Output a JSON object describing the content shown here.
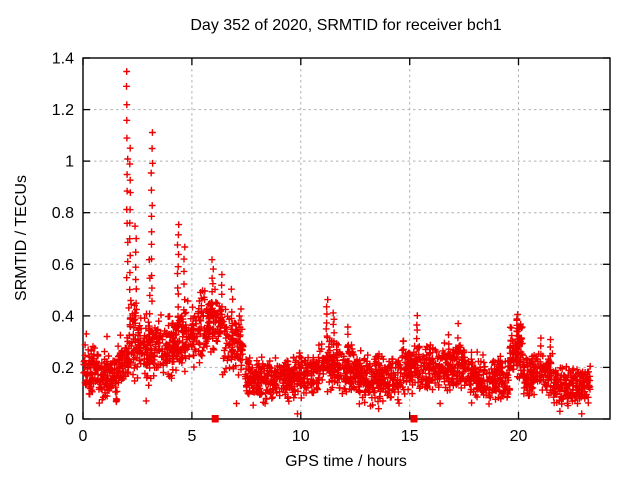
{
  "chart_data": {
    "type": "scatter",
    "title": "Day 352 of 2020, SRMTID for receiver bch1",
    "xlabel": "GPS time / hours",
    "ylabel": "SRMTID / TECUs",
    "xlim": [
      0,
      24.2
    ],
    "ylim": [
      0,
      1.4
    ],
    "xticks": {
      "values": [
        0,
        5,
        10,
        15,
        20
      ],
      "labels": [
        "0",
        "5",
        "10",
        "15",
        "20"
      ]
    },
    "yticks": {
      "values": [
        0,
        0.2,
        0.4,
        0.6,
        0.8,
        1.0,
        1.2,
        1.4
      ],
      "labels": [
        "0",
        "0.2",
        "0.4",
        "0.6",
        "0.8",
        "1",
        "1.2",
        "1.4"
      ]
    },
    "grid": true,
    "grid_color": "#b0b0b0",
    "axis_color": "#000000",
    "legend": "none",
    "series": [
      {
        "name": "srmtid-points",
        "marker": "plus",
        "color": "#ee0000",
        "seed": 1352,
        "envelope_segments": [
          {
            "h0": 0.03,
            "h1": 0.7,
            "center": 0.19,
            "spread": 0.13,
            "count": 80
          },
          {
            "h0": 0.7,
            "h1": 1.6,
            "center": 0.16,
            "spread": 0.12,
            "count": 100
          },
          {
            "h0": 1.6,
            "h1": 2.1,
            "center": 0.22,
            "spread": 0.16,
            "count": 60
          },
          {
            "h0": 2.1,
            "h1": 2.6,
            "center": 0.3,
            "spread": 0.19,
            "count": 60
          },
          {
            "h0": 2.6,
            "h1": 3.3,
            "center": 0.26,
            "spread": 0.17,
            "count": 80
          },
          {
            "h0": 3.3,
            "h1": 4.3,
            "center": 0.28,
            "spread": 0.16,
            "count": 110
          },
          {
            "h0": 4.3,
            "h1": 5.3,
            "center": 0.31,
            "spread": 0.17,
            "count": 110
          },
          {
            "h0": 5.3,
            "h1": 6.4,
            "center": 0.36,
            "spread": 0.17,
            "count": 120
          },
          {
            "h0": 6.4,
            "h1": 7.35,
            "center": 0.29,
            "spread": 0.17,
            "count": 100
          },
          {
            "h0": 7.45,
            "h1": 9.6,
            "center": 0.15,
            "spread": 0.11,
            "count": 240
          },
          {
            "h0": 9.6,
            "h1": 10.8,
            "center": 0.17,
            "spread": 0.12,
            "count": 130
          },
          {
            "h0": 10.8,
            "h1": 11.7,
            "center": 0.21,
            "spread": 0.13,
            "count": 100
          },
          {
            "h0": 11.7,
            "h1": 12.6,
            "center": 0.19,
            "spread": 0.13,
            "count": 100
          },
          {
            "h0": 12.6,
            "h1": 14.6,
            "center": 0.16,
            "spread": 0.13,
            "count": 220
          },
          {
            "h0": 14.6,
            "h1": 16.0,
            "center": 0.2,
            "spread": 0.13,
            "count": 150
          },
          {
            "h0": 16.0,
            "h1": 17.6,
            "center": 0.2,
            "spread": 0.13,
            "count": 170
          },
          {
            "h0": 17.6,
            "h1": 19.6,
            "center": 0.16,
            "spread": 0.12,
            "count": 210
          },
          {
            "h0": 19.6,
            "h1": 20.2,
            "center": 0.26,
            "spread": 0.14,
            "count": 70
          },
          {
            "h0": 20.2,
            "h1": 21.6,
            "center": 0.17,
            "spread": 0.12,
            "count": 150
          },
          {
            "h0": 21.6,
            "h1": 23.3,
            "center": 0.13,
            "spread": 0.1,
            "count": 180
          }
        ],
        "outlier_streaks": [
          {
            "x": 2.03,
            "ylo": 0.55,
            "yhi": 1.35,
            "count": 13
          },
          {
            "x": 2.18,
            "ylo": 0.45,
            "yhi": 1.05,
            "count": 11
          },
          {
            "x": 2.42,
            "ylo": 0.4,
            "yhi": 0.74,
            "count": 8
          },
          {
            "x": 3.16,
            "ylo": 0.45,
            "yhi": 1.11,
            "count": 13
          },
          {
            "x": 3.05,
            "ylo": 0.35,
            "yhi": 0.62,
            "count": 5
          },
          {
            "x": 4.36,
            "ylo": 0.4,
            "yhi": 0.75,
            "count": 10
          },
          {
            "x": 4.65,
            "ylo": 0.42,
            "yhi": 0.66,
            "count": 6
          },
          {
            "x": 5.95,
            "ylo": 0.42,
            "yhi": 0.62,
            "count": 7
          },
          {
            "x": 6.35,
            "ylo": 0.4,
            "yhi": 0.57,
            "count": 5
          },
          {
            "x": 6.85,
            "ylo": 0.38,
            "yhi": 0.5,
            "count": 4
          },
          {
            "x": 11.2,
            "ylo": 0.32,
            "yhi": 0.47,
            "count": 6
          },
          {
            "x": 11.5,
            "ylo": 0.3,
            "yhi": 0.42,
            "count": 5
          },
          {
            "x": 12.15,
            "ylo": 0.27,
            "yhi": 0.35,
            "count": 4
          },
          {
            "x": 15.35,
            "ylo": 0.28,
            "yhi": 0.4,
            "count": 5
          },
          {
            "x": 16.8,
            "ylo": 0.24,
            "yhi": 0.33,
            "count": 4
          },
          {
            "x": 17.25,
            "ylo": 0.25,
            "yhi": 0.36,
            "count": 4
          },
          {
            "x": 19.95,
            "ylo": 0.27,
            "yhi": 0.41,
            "count": 10
          },
          {
            "x": 20.1,
            "ylo": 0.24,
            "yhi": 0.37,
            "count": 6
          },
          {
            "x": 21.0,
            "ylo": 0.22,
            "yhi": 0.31,
            "count": 4
          },
          {
            "x": 21.45,
            "ylo": 0.21,
            "yhi": 0.3,
            "count": 4
          }
        ],
        "extra_points": [
          [
            2.9,
            0.07
          ],
          [
            7.05,
            0.06
          ],
          [
            9.85,
            0.02
          ],
          [
            13.2,
            0.05
          ],
          [
            16.4,
            0.06
          ],
          [
            21.9,
            0.03
          ],
          [
            22.9,
            0.02
          ],
          [
            0.15,
            0.33
          ],
          [
            1.1,
            0.32
          ]
        ]
      },
      {
        "name": "zero-flag-points",
        "marker": "square",
        "color": "#ee0000",
        "points": [
          [
            6.07,
            0
          ],
          [
            15.2,
            0
          ]
        ]
      }
    ]
  }
}
